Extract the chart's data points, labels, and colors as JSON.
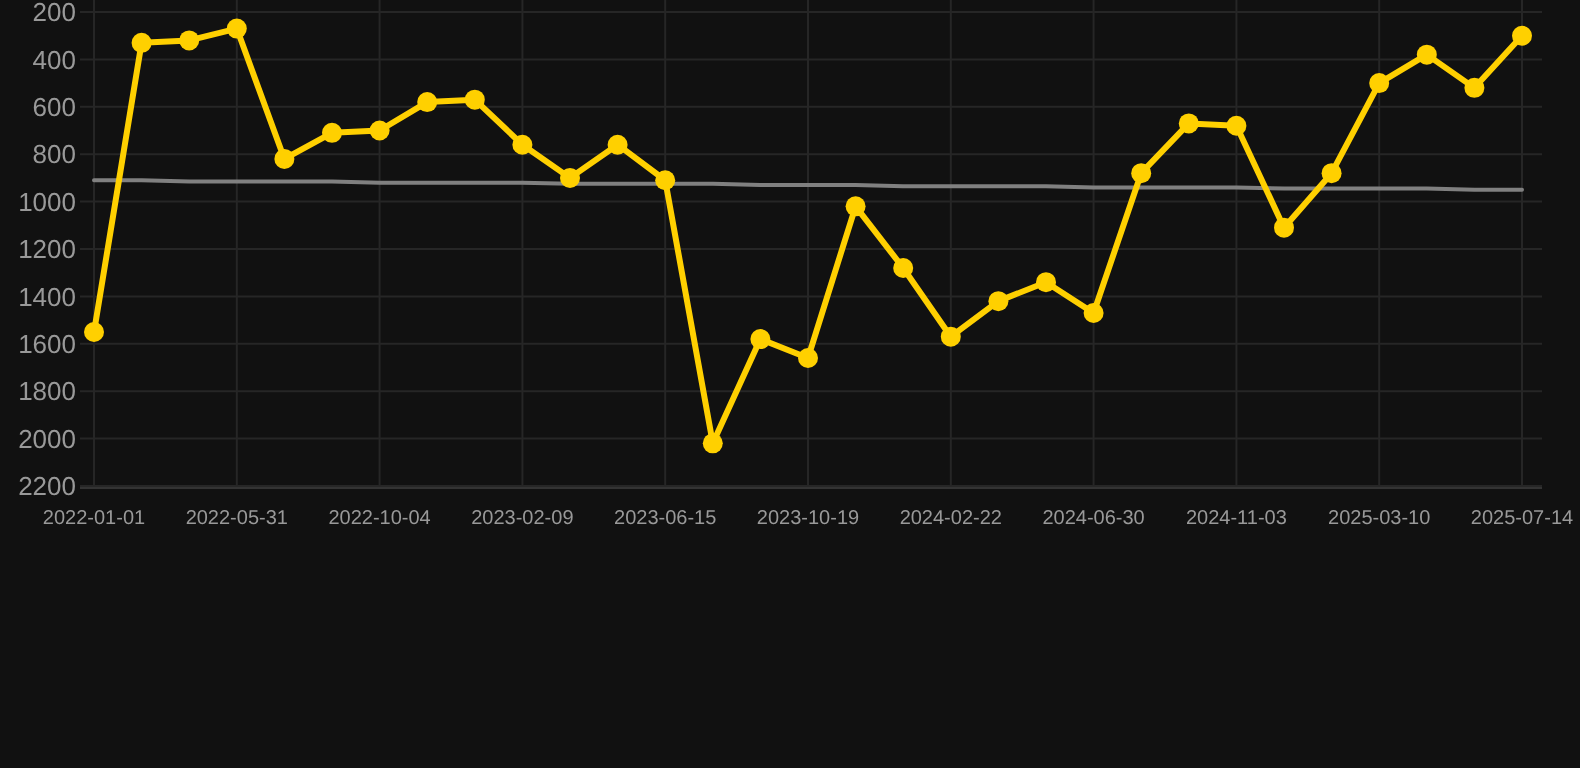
{
  "chart_data": {
    "type": "line",
    "categories": [
      "2022-01-01",
      null,
      null,
      "2022-05-31",
      null,
      null,
      "2022-10-04",
      null,
      null,
      "2023-02-09",
      null,
      null,
      "2023-06-15",
      null,
      null,
      "2023-10-19",
      null,
      null,
      "2024-02-22",
      null,
      null,
      "2024-06-30",
      null,
      null,
      "2024-11-03",
      null,
      null,
      "2025-03-10",
      null,
      null,
      "2025-07-14"
    ],
    "series": [
      {
        "color": "#ffd000",
        "marker": "circle",
        "values": [
          1550,
          330,
          320,
          270,
          820,
          710,
          700,
          580,
          570,
          760,
          900,
          760,
          910,
          2020,
          1580,
          1660,
          1020,
          1280,
          1570,
          1420,
          1340,
          1470,
          880,
          670,
          680,
          1110,
          880,
          500,
          380,
          520,
          300
        ]
      },
      {
        "type": "line",
        "color": "#808080",
        "marker": "none",
        "values": [
          910,
          910,
          915,
          915,
          915,
          915,
          920,
          920,
          920,
          920,
          925,
          925,
          925,
          925,
          930,
          930,
          930,
          935,
          935,
          935,
          935,
          940,
          940,
          940,
          940,
          945,
          945,
          945,
          945,
          950,
          950
        ]
      }
    ],
    "ylim": [
      2200,
      200
    ],
    "yticks": [
      200,
      400,
      600,
      800,
      1000,
      1200,
      1400,
      1600,
      1800,
      2000,
      2200
    ],
    "grid": true,
    "line_style": "solid"
  }
}
